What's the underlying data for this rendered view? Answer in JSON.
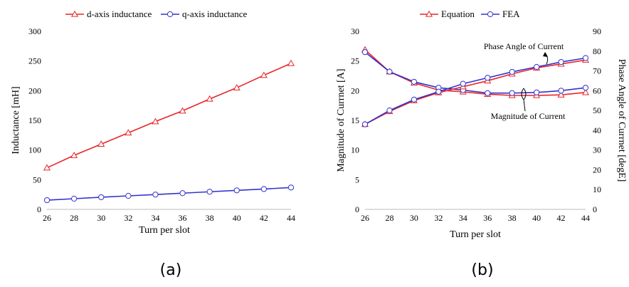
{
  "chart_data": [
    {
      "type": "line",
      "panel_label": "(a)",
      "title": "",
      "xlabel": "Turn per slot",
      "ylabel": "Inductance [mH]",
      "x": [
        26,
        28,
        30,
        32,
        34,
        36,
        38,
        40,
        42,
        44
      ],
      "x_ticks": [
        26,
        28,
        30,
        32,
        34,
        36,
        38,
        40,
        42,
        44
      ],
      "xlim": [
        26,
        44
      ],
      "ylim": [
        0,
        300
      ],
      "y_ticks": [
        0,
        50,
        100,
        150,
        200,
        250,
        300
      ],
      "grid": false,
      "legend_position": "top",
      "series": [
        {
          "name": "d-axis inductance",
          "color": "#e8262a",
          "marker": "triangle",
          "values": [
            70,
            91,
            110,
            129,
            148,
            166,
            186,
            205,
            226,
            246
          ]
        },
        {
          "name": "q-axis inductance",
          "color": "#3333cc",
          "marker": "circle",
          "values": [
            15.5,
            18,
            20.5,
            22.8,
            25,
            27.3,
            29.7,
            32,
            34.3,
            36.8
          ]
        }
      ]
    },
    {
      "type": "line",
      "panel_label": "(b)",
      "title": "",
      "xlabel": "Turn per slot",
      "ylabel": "Magnitude of Currnet [A]",
      "y2label": "Phase Angle of Currnet [degE]",
      "x": [
        26,
        28,
        30,
        32,
        34,
        36,
        38,
        40,
        42,
        44
      ],
      "x_ticks": [
        26,
        28,
        30,
        32,
        34,
        36,
        38,
        40,
        42,
        44
      ],
      "xlim": [
        26,
        44
      ],
      "ylim": [
        0,
        30
      ],
      "y_ticks": [
        0,
        5,
        10,
        15,
        20,
        25,
        30
      ],
      "y2lim": [
        0,
        90
      ],
      "y2_ticks": [
        0,
        10,
        20,
        30,
        40,
        50,
        60,
        70,
        80,
        90
      ],
      "grid": false,
      "legend_position": "top",
      "legend": [
        {
          "name": "Equation",
          "color": "#e8262a",
          "marker": "triangle"
        },
        {
          "name": "FEA",
          "color": "#3333cc",
          "marker": "circle"
        }
      ],
      "annotations": [
        {
          "text": "Phase Angle of Current"
        },
        {
          "text": "Magnitude of Current"
        }
      ],
      "series": [
        {
          "group": "Equation",
          "quantity": "magnitude",
          "axis": "left",
          "color": "#e8262a",
          "marker": "triangle",
          "values": [
            26.9,
            23.2,
            21.3,
            20.1,
            19.8,
            19.4,
            19.2,
            19.2,
            19.3,
            19.7
          ]
        },
        {
          "group": "FEA",
          "quantity": "magnitude",
          "axis": "left",
          "color": "#3333cc",
          "marker": "circle",
          "values": [
            26.5,
            23.2,
            21.5,
            20.5,
            20.1,
            19.6,
            19.6,
            19.7,
            20.0,
            20.5
          ]
        },
        {
          "group": "Equation",
          "quantity": "phase",
          "axis": "right",
          "color": "#e8262a",
          "marker": "triangle",
          "values": [
            43,
            49.5,
            55,
            59,
            62,
            65,
            68.5,
            71.5,
            73.5,
            75.5
          ]
        },
        {
          "group": "FEA",
          "quantity": "phase",
          "axis": "right",
          "color": "#3333cc",
          "marker": "circle",
          "values": [
            43,
            50,
            55.5,
            59.5,
            63.5,
            66.5,
            69.5,
            72,
            74.5,
            76.5
          ]
        }
      ]
    }
  ]
}
